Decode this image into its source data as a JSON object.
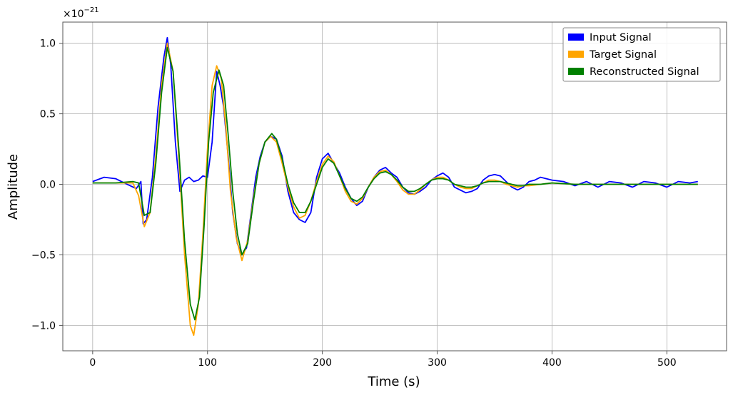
{
  "chart_data": {
    "type": "line",
    "xlabel": "Time (s)",
    "ylabel": "Amplitude",
    "y_scale_label": "×10",
    "y_scale_exponent": "−21",
    "xlim": [
      -26,
      552
    ],
    "ylim": [
      -1.18,
      1.15
    ],
    "grid": true,
    "legend_position": "top-right",
    "x_ticks": [
      {
        "value": 0,
        "label": "0"
      },
      {
        "value": 100,
        "label": "100"
      },
      {
        "value": 200,
        "label": "200"
      },
      {
        "value": 300,
        "label": "300"
      },
      {
        "value": 400,
        "label": "400"
      },
      {
        "value": 500,
        "label": "500"
      }
    ],
    "y_ticks": [
      {
        "value": -1.0,
        "label": "−1.0"
      },
      {
        "value": -0.5,
        "label": "−0.5"
      },
      {
        "value": 0.0,
        "label": "0.0"
      },
      {
        "value": 0.5,
        "label": "0.5"
      },
      {
        "value": 1.0,
        "label": "1.0"
      }
    ],
    "series": [
      {
        "name": "Input Signal",
        "color": "#0000ff",
        "x": [
          0,
          10,
          20,
          30,
          38,
          42,
          44,
          47,
          52,
          57,
          62,
          65,
          68,
          72,
          76,
          80,
          84,
          88,
          92,
          96,
          100,
          104,
          108,
          111,
          114,
          118,
          122,
          126,
          130,
          134,
          138,
          142,
          146,
          150,
          155,
          160,
          165,
          170,
          175,
          180,
          185,
          190,
          195,
          200,
          205,
          210,
          215,
          220,
          225,
          230,
          235,
          240,
          245,
          250,
          255,
          260,
          265,
          270,
          275,
          280,
          285,
          290,
          295,
          300,
          305,
          310,
          315,
          320,
          325,
          330,
          335,
          340,
          345,
          350,
          355,
          360,
          365,
          370,
          375,
          380,
          385,
          390,
          395,
          400,
          410,
          420,
          430,
          440,
          450,
          460,
          470,
          480,
          490,
          500,
          510,
          520,
          527
        ],
        "y": [
          0.02,
          0.05,
          0.04,
          0.0,
          -0.03,
          0.02,
          -0.28,
          -0.25,
          0.05,
          0.55,
          0.9,
          1.04,
          0.85,
          0.3,
          -0.05,
          0.03,
          0.05,
          0.02,
          0.03,
          0.06,
          0.05,
          0.3,
          0.8,
          0.7,
          0.55,
          0.2,
          -0.2,
          -0.42,
          -0.5,
          -0.45,
          -0.2,
          0.05,
          0.2,
          0.3,
          0.34,
          0.32,
          0.2,
          -0.05,
          -0.2,
          -0.25,
          -0.27,
          -0.2,
          0.05,
          0.18,
          0.22,
          0.15,
          0.08,
          -0.02,
          -0.1,
          -0.15,
          -0.12,
          -0.02,
          0.05,
          0.1,
          0.12,
          0.08,
          0.05,
          -0.02,
          -0.06,
          -0.07,
          -0.05,
          -0.02,
          0.03,
          0.06,
          0.08,
          0.05,
          -0.02,
          -0.04,
          -0.06,
          -0.05,
          -0.03,
          0.03,
          0.06,
          0.07,
          0.06,
          0.02,
          -0.02,
          -0.04,
          -0.02,
          0.02,
          0.03,
          0.05,
          0.04,
          0.03,
          0.02,
          -0.01,
          0.02,
          -0.02,
          0.02,
          0.01,
          -0.02,
          0.02,
          0.01,
          -0.02,
          0.02,
          0.01,
          0.02
        ]
      },
      {
        "name": "Target Signal",
        "color": "#ffa500",
        "x": [
          0,
          20,
          35,
          40,
          45,
          50,
          55,
          60,
          65,
          70,
          75,
          80,
          85,
          88,
          92,
          96,
          100,
          104,
          108,
          112,
          116,
          120,
          125,
          130,
          135,
          140,
          145,
          150,
          155,
          160,
          165,
          170,
          175,
          180,
          185,
          190,
          195,
          200,
          205,
          210,
          215,
          220,
          225,
          230,
          235,
          240,
          245,
          250,
          255,
          260,
          265,
          270,
          275,
          280,
          285,
          290,
          295,
          300,
          305,
          310,
          315,
          320,
          325,
          330,
          335,
          340,
          345,
          350,
          355,
          360,
          365,
          370,
          375,
          380,
          390,
          400,
          420,
          450,
          480,
          500,
          527
        ],
        "y": [
          0.01,
          0.01,
          0.01,
          -0.08,
          -0.3,
          -0.2,
          0.2,
          0.7,
          1.0,
          0.8,
          0.2,
          -0.5,
          -1.0,
          -1.07,
          -0.85,
          -0.35,
          0.25,
          0.7,
          0.84,
          0.75,
          0.4,
          -0.05,
          -0.38,
          -0.54,
          -0.4,
          -0.1,
          0.15,
          0.3,
          0.34,
          0.3,
          0.15,
          -0.02,
          -0.16,
          -0.24,
          -0.22,
          -0.12,
          0.02,
          0.14,
          0.2,
          0.16,
          0.06,
          -0.05,
          -0.12,
          -0.14,
          -0.1,
          -0.02,
          0.05,
          0.09,
          0.1,
          0.07,
          0.02,
          -0.04,
          -0.07,
          -0.07,
          -0.04,
          0.0,
          0.03,
          0.05,
          0.05,
          0.03,
          0.0,
          -0.02,
          -0.03,
          -0.03,
          -0.01,
          0.01,
          0.03,
          0.03,
          0.02,
          0.0,
          -0.01,
          -0.02,
          -0.01,
          -0.01,
          0.0,
          0.01,
          0.0,
          0.0,
          0.0,
          0.0,
          0.0
        ]
      },
      {
        "name": "Reconstructed Signal",
        "color": "#008000",
        "x": [
          0,
          20,
          35,
          40,
          45,
          50,
          55,
          60,
          65,
          70,
          75,
          80,
          85,
          89,
          93,
          97,
          101,
          105,
          110,
          114,
          118,
          122,
          126,
          130,
          135,
          140,
          145,
          150,
          156,
          160,
          165,
          170,
          175,
          180,
          185,
          190,
          195,
          200,
          205,
          210,
          215,
          220,
          225,
          230,
          235,
          240,
          245,
          250,
          255,
          260,
          265,
          270,
          275,
          280,
          285,
          290,
          295,
          300,
          305,
          310,
          315,
          320,
          325,
          330,
          335,
          340,
          345,
          350,
          355,
          360,
          365,
          370,
          375,
          380,
          390,
          400,
          420,
          450,
          480,
          500,
          527
        ],
        "y": [
          0.01,
          0.01,
          0.02,
          0.01,
          -0.22,
          -0.2,
          0.15,
          0.65,
          0.97,
          0.8,
          0.25,
          -0.4,
          -0.85,
          -0.96,
          -0.8,
          -0.3,
          0.3,
          0.65,
          0.81,
          0.7,
          0.35,
          -0.05,
          -0.35,
          -0.5,
          -0.42,
          -0.12,
          0.15,
          0.3,
          0.36,
          0.32,
          0.18,
          0.0,
          -0.13,
          -0.2,
          -0.2,
          -0.12,
          0.0,
          0.12,
          0.18,
          0.15,
          0.06,
          -0.03,
          -0.1,
          -0.12,
          -0.09,
          -0.02,
          0.04,
          0.08,
          0.09,
          0.07,
          0.03,
          -0.02,
          -0.05,
          -0.05,
          -0.03,
          0.0,
          0.03,
          0.04,
          0.04,
          0.03,
          0.0,
          -0.01,
          -0.02,
          -0.02,
          -0.01,
          0.01,
          0.02,
          0.02,
          0.02,
          0.01,
          0.0,
          -0.01,
          -0.01,
          0.0,
          0.0,
          0.01,
          0.0,
          0.0,
          0.0,
          0.0,
          0.0
        ]
      }
    ]
  }
}
